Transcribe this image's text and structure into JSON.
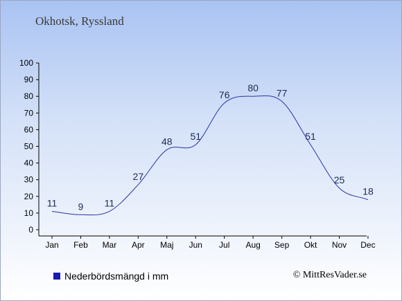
{
  "title": "Okhotsk, Ryssland",
  "legend_label": "Nederbördsmängd i mm",
  "copyright": "© MittResVader.se",
  "colors": {
    "line": "#2634a0",
    "legend_swatch": "#1a1ab4",
    "axis": "#000000"
  },
  "chart_data": {
    "type": "line",
    "categories": [
      "Jan",
      "Feb",
      "Mar",
      "Apr",
      "Maj",
      "Jun",
      "Jul",
      "Aug",
      "Sep",
      "Okt",
      "Nov",
      "Dec"
    ],
    "series": [
      {
        "name": "Nederbördsmängd i mm",
        "values": [
          11,
          9,
          11,
          27,
          48,
          51,
          76,
          80,
          77,
          51,
          25,
          18
        ]
      }
    ],
    "yticks": [
      0,
      10,
      20,
      30,
      40,
      50,
      60,
      70,
      80,
      90,
      100
    ],
    "ylim": [
      0,
      100
    ],
    "grid": false,
    "legend_position": "bottom-left"
  }
}
